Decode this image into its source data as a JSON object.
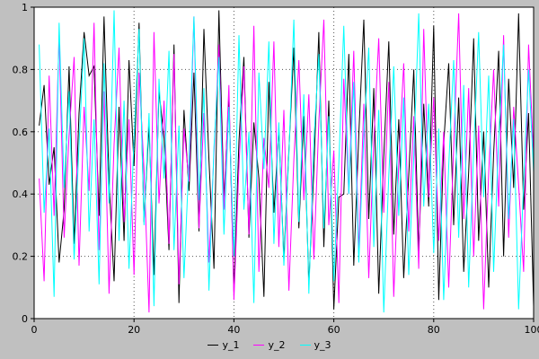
{
  "chart": {
    "colors": {
      "background": "#c0c0c0",
      "plot_background": "#ffffff",
      "grid": "#555555",
      "axis": "#000000",
      "tick_text": "#000000"
    }
  },
  "chart_data": {
    "type": "line",
    "title": "",
    "xlabel": "",
    "ylabel": "",
    "xlim": [
      0,
      100
    ],
    "ylim": [
      0,
      1
    ],
    "xticks": [
      0,
      20,
      40,
      60,
      80,
      100
    ],
    "xtick_labels": [
      "0",
      "20",
      "40",
      "60",
      "80",
      "100"
    ],
    "yticks": [
      0,
      0.2,
      0.4,
      0.6,
      0.8,
      1
    ],
    "ytick_labels": [
      "0",
      "0.2",
      "0.4",
      "0.6",
      "0.8",
      "1"
    ],
    "grid": true,
    "legend_position": "bottom",
    "x": [
      1,
      2,
      3,
      4,
      5,
      6,
      7,
      8,
      9,
      10,
      11,
      12,
      13,
      14,
      15,
      16,
      17,
      18,
      19,
      20,
      21,
      22,
      23,
      24,
      25,
      26,
      27,
      28,
      29,
      30,
      31,
      32,
      33,
      34,
      35,
      36,
      37,
      38,
      39,
      40,
      41,
      42,
      43,
      44,
      45,
      46,
      47,
      48,
      49,
      50,
      51,
      52,
      53,
      54,
      55,
      56,
      57,
      58,
      59,
      60,
      61,
      62,
      63,
      64,
      65,
      66,
      67,
      68,
      69,
      70,
      71,
      72,
      73,
      74,
      75,
      76,
      77,
      78,
      79,
      80,
      81,
      82,
      83,
      84,
      85,
      86,
      87,
      88,
      89,
      90,
      91,
      92,
      93,
      94,
      95,
      96,
      97,
      98,
      99,
      100
    ],
    "series": [
      {
        "name": "y_1",
        "color": "#000000",
        "values": [
          0.62,
          0.75,
          0.43,
          0.55,
          0.18,
          0.35,
          0.81,
          0.24,
          0.66,
          0.92,
          0.78,
          0.81,
          0.33,
          0.97,
          0.44,
          0.12,
          0.68,
          0.25,
          0.83,
          0.49,
          0.95,
          0.31,
          0.62,
          0.14,
          0.73,
          0.58,
          0.22,
          0.88,
          0.05,
          0.67,
          0.41,
          0.79,
          0.28,
          0.93,
          0.51,
          0.16,
          0.99,
          0.38,
          0.72,
          0.09,
          0.57,
          0.84,
          0.26,
          0.63,
          0.45,
          0.07,
          0.76,
          0.34,
          0.61,
          0.19,
          0.54,
          0.87,
          0.29,
          0.65,
          0.11,
          0.48,
          0.92,
          0.23,
          0.7,
          0.03,
          0.39,
          0.4,
          0.85,
          0.17,
          0.59,
          0.96,
          0.32,
          0.74,
          0.08,
          0.52,
          0.89,
          0.27,
          0.64,
          0.13,
          0.46,
          0.8,
          0.21,
          0.69,
          0.36,
          0.94,
          0.06,
          0.56,
          0.82,
          0.3,
          0.71,
          0.15,
          0.47,
          0.9,
          0.25,
          0.6,
          0.1,
          0.53,
          0.86,
          0.2,
          0.77,
          0.42,
          0.98,
          0.35,
          0.66,
          0.04
        ]
      },
      {
        "name": "y_2",
        "color": "#ff00ff",
        "values": [
          0.45,
          0.12,
          0.78,
          0.33,
          0.91,
          0.26,
          0.59,
          0.84,
          0.17,
          0.68,
          0.41,
          0.95,
          0.22,
          0.73,
          0.08,
          0.56,
          0.87,
          0.31,
          0.64,
          0.14,
          0.79,
          0.48,
          0.02,
          0.92,
          0.37,
          0.7,
          0.24,
          0.85,
          0.11,
          0.61,
          0.44,
          0.97,
          0.29,
          0.66,
          0.18,
          0.53,
          0.88,
          0.35,
          0.75,
          0.06,
          0.49,
          0.81,
          0.27,
          0.94,
          0.15,
          0.58,
          0.42,
          0.89,
          0.23,
          0.67,
          0.09,
          0.51,
          0.83,
          0.38,
          0.72,
          0.19,
          0.63,
          0.96,
          0.3,
          0.54,
          0.05,
          0.77,
          0.4,
          0.86,
          0.21,
          0.69,
          0.13,
          0.57,
          0.9,
          0.34,
          0.76,
          0.07,
          0.5,
          0.82,
          0.28,
          0.65,
          0.16,
          0.93,
          0.39,
          0.71,
          0.25,
          0.6,
          0.1,
          0.55,
          0.98,
          0.32,
          0.74,
          0.2,
          0.62,
          0.03,
          0.47,
          0.8,
          0.36,
          0.91,
          0.26,
          0.68,
          0.43,
          0.15,
          0.88,
          0.52
        ]
      },
      {
        "name": "y_3",
        "color": "#00ffff",
        "values": [
          0.88,
          0.34,
          0.61,
          0.07,
          0.95,
          0.42,
          0.73,
          0.19,
          0.56,
          0.9,
          0.28,
          0.64,
          0.11,
          0.82,
          0.37,
          0.99,
          0.25,
          0.7,
          0.16,
          0.58,
          0.93,
          0.3,
          0.66,
          0.04,
          0.77,
          0.45,
          0.86,
          0.22,
          0.62,
          0.13,
          0.51,
          0.97,
          0.38,
          0.74,
          0.09,
          0.55,
          0.84,
          0.27,
          0.68,
          0.2,
          0.91,
          0.35,
          0.6,
          0.05,
          0.79,
          0.48,
          0.89,
          0.24,
          0.63,
          0.17,
          0.53,
          0.96,
          0.31,
          0.72,
          0.08,
          0.57,
          0.85,
          0.29,
          0.65,
          0.12,
          0.5,
          0.94,
          0.4,
          0.76,
          0.18,
          0.59,
          0.87,
          0.23,
          0.67,
          0.02,
          0.46,
          0.81,
          0.33,
          0.71,
          0.14,
          0.52,
          0.98,
          0.36,
          0.69,
          0.21,
          0.61,
          0.06,
          0.49,
          0.83,
          0.26,
          0.75,
          0.1,
          0.54,
          0.92,
          0.39,
          0.78,
          0.15,
          0.58,
          0.88,
          0.32,
          0.64,
          0.03,
          0.44,
          0.8,
          0.47
        ]
      }
    ]
  }
}
